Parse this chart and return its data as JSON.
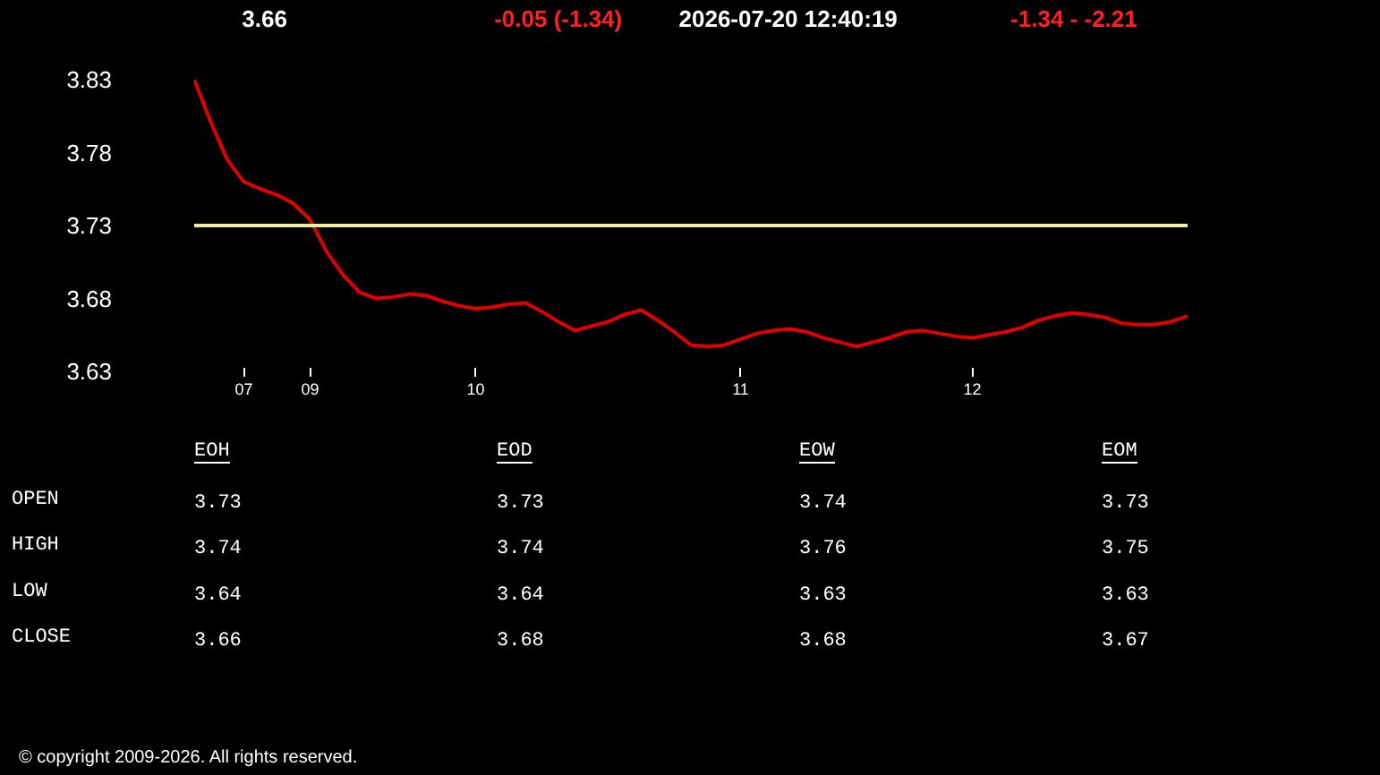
{
  "chart_data": [
    {
      "type": "line",
      "annotations": [
        "3.66",
        "-0.05  (-1.34)",
        "2026-07-20   12:40:19",
        "-1.34   -   -2.21"
      ],
      "categories": [
        null,
        null,
        null,
        "07",
        null,
        null,
        null,
        "09",
        null,
        null,
        null,
        null,
        null,
        null,
        null,
        null,
        null,
        "10",
        null,
        null,
        null,
        null,
        null,
        null,
        null,
        null,
        null,
        null,
        null,
        null,
        null,
        null,
        null,
        "11",
        null,
        null,
        null,
        null,
        null,
        null,
        null,
        null,
        null,
        null,
        null,
        null,
        null,
        "12",
        null,
        null,
        null,
        null,
        null,
        null,
        null,
        null,
        null,
        null,
        null,
        null,
        null
      ],
      "series": [
        {
          "color": "#e00000",
          "values": [
            3.83,
            3.801,
            3.775,
            3.76,
            3.755,
            3.751,
            3.745,
            3.734,
            3.712,
            3.696,
            3.684,
            3.68,
            3.681,
            3.683,
            3.682,
            3.678,
            3.675,
            3.673,
            3.674,
            3.676,
            3.677,
            3.671,
            3.664,
            3.658,
            3.661,
            3.664,
            3.669,
            3.672,
            3.665,
            3.657,
            3.648,
            3.647,
            3.648,
            3.652,
            3.656,
            3.658,
            3.659,
            3.657,
            3.653,
            3.65,
            3.647,
            3.65,
            3.653,
            3.657,
            3.658,
            3.656,
            3.654,
            3.653,
            3.655,
            3.657,
            3.66,
            3.665,
            3.668,
            3.67,
            3.669,
            3.667,
            3.663,
            3.662,
            3.662,
            3.664,
            3.668
          ]
        }
      ],
      "ref_lines": [
        {
          "axis": "y",
          "value": 3.73,
          "color": "#eeeeaa"
        }
      ],
      "ylim": [
        3.63,
        3.83
      ],
      "yticks": [
        3.63,
        3.68,
        3.73,
        3.78,
        3.83
      ],
      "grid": false,
      "marker": "none",
      "line_style": "solid"
    },
    {
      "type": "heatmap",
      "categories": [
        "EOH",
        "EOD",
        "EOW",
        "EOM"
      ],
      "y_categories": [
        "OPEN",
        "HIGH",
        "LOW",
        "CLOSE"
      ],
      "cells": [
        [
          3.73,
          3.73,
          3.74,
          3.73
        ],
        [
          3.74,
          3.74,
          3.76,
          3.75
        ],
        [
          3.64,
          3.64,
          3.63,
          3.63
        ],
        [
          3.66,
          3.68,
          3.68,
          3.67
        ]
      ],
      "data_labels": true,
      "annotations": [
        "© copyright 2009-2026. All rights reserved."
      ]
    }
  ]
}
